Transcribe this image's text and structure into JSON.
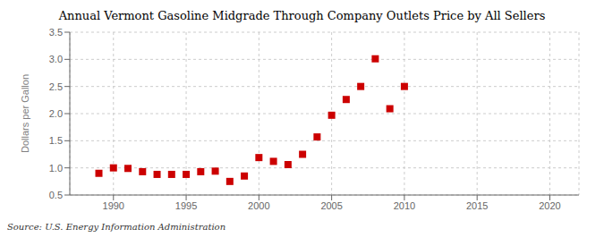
{
  "chart_data": {
    "type": "scatter",
    "title": "Annual Vermont Gasoline Midgrade Through Company Outlets Price by All Sellers",
    "ylabel": "Dollars per Gallon",
    "annotation": "Source: U.S. Energy Information Administration",
    "color": "#cc0000",
    "marker": "square",
    "x": [
      1989,
      1990,
      1991,
      1992,
      1993,
      1994,
      1995,
      1996,
      1997,
      1998,
      1999,
      2000,
      2001,
      2002,
      2003,
      2004,
      2005,
      2006,
      2007,
      2008,
      2009,
      2010
    ],
    "values": [
      0.9,
      1.0,
      0.99,
      0.93,
      0.88,
      0.88,
      0.88,
      0.93,
      0.94,
      0.75,
      0.85,
      1.19,
      1.12,
      1.06,
      1.25,
      1.57,
      1.97,
      2.26,
      2.5,
      3.01,
      2.09,
      2.5
    ],
    "xlim": [
      1987,
      2022
    ],
    "ylim": [
      0.5,
      3.5
    ],
    "xticks": [
      1990,
      1995,
      2000,
      2005,
      2010,
      2015,
      2020
    ],
    "yticks": [
      0.5,
      {
        "value": 1.0,
        "label": "1.0"
      },
      1.5,
      {
        "value": 2.0,
        "label": "2.0"
      },
      2.5,
      {
        "value": 3.0,
        "label": "3.0"
      },
      3.5
    ],
    "grid": true
  }
}
